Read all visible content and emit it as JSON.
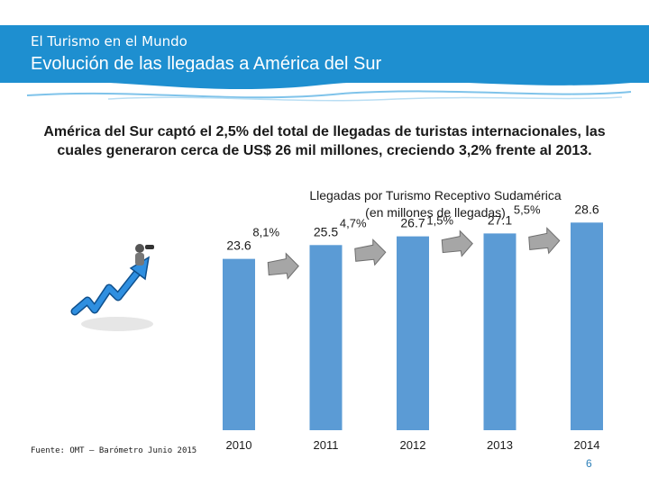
{
  "header": {
    "supertitle": "El Turismo en el Mundo",
    "title": "Evolución de las llegadas a América del Sur"
  },
  "summary": {
    "line1": "América del Sur captó el 2,5% del total de llegadas de turistas internacionales, las",
    "line2": "cuales generaron cerca de US$ 26 mil millones, creciendo 3,2% frente al 2013."
  },
  "chart_data": {
    "type": "bar",
    "title_line1": "Llegadas por Turismo Receptivo Sudamérica",
    "title_line2": "(en millones de llegadas)",
    "categories": [
      "2010",
      "2011",
      "2012",
      "2013",
      "2014"
    ],
    "values": [
      23.6,
      25.5,
      26.7,
      27.1,
      28.6
    ],
    "value_labels": [
      "23.6",
      "25.5",
      "26.7",
      "27.1",
      "28.6"
    ],
    "growth_labels": [
      "8,1%",
      "4,7%",
      "1,5%",
      "5,5%"
    ],
    "bar_color": "#5b9bd5",
    "arrow_color": "#a6a6a6",
    "ylim": [
      0,
      30
    ],
    "grid": false,
    "legend": "none"
  },
  "footer": {
    "source": "Fuente: OMT – Barómetro Junio 2015",
    "page": "6"
  },
  "colors": {
    "header_band": "#1e8fd0",
    "page_number": "#2c7fb8"
  },
  "icons": {
    "illustration": "growth-arrow-with-figure-icon"
  }
}
